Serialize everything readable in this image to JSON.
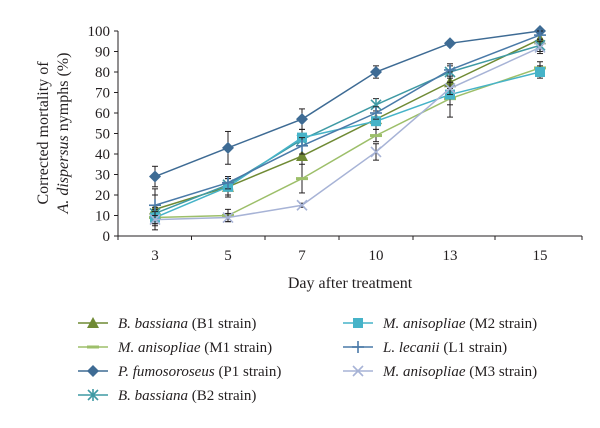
{
  "chart_data": {
    "type": "line",
    "title": "",
    "xlabel": "Day after treatment",
    "ylabel": {
      "line1": "Corrected mortality of",
      "line2_species": "A. dispersus",
      "line2_rest": "nymphs (%)"
    },
    "x": [
      "3",
      "5",
      "7",
      "10",
      "13",
      "15"
    ],
    "ylim": [
      0,
      100
    ],
    "yticks": [
      "0",
      "10",
      "20",
      "30",
      "40",
      "50",
      "60",
      "70",
      "80",
      "90",
      "100"
    ],
    "grid": false,
    "legend_position": "bottom",
    "series": [
      {
        "name_species": "B. bassiana",
        "name_strain": "(B1 strain)",
        "marker": "triangle",
        "color": "#6f8a34",
        "values": [
          13,
          24,
          39,
          57,
          75,
          96
        ],
        "errors": [
          10,
          4,
          11,
          3,
          3,
          3
        ]
      },
      {
        "name_species": "M. anisopliae",
        "name_strain": "(M1 strain)",
        "marker": "dash",
        "color": "#9dbf6a",
        "values": [
          9,
          10,
          28,
          49,
          67,
          82
        ],
        "errors": [
          4,
          3,
          7,
          3,
          3,
          3
        ]
      },
      {
        "name_species": "P. fumosoroseus",
        "name_strain": "(P1 strain)",
        "marker": "diamond",
        "color": "#3e6b94",
        "values": [
          29,
          43,
          57,
          80,
          94,
          100
        ],
        "errors": [
          5,
          8,
          5,
          3,
          1,
          0
        ]
      },
      {
        "name_species": "B. bassiana",
        "name_strain": "(B2 strain)",
        "marker": "asterisk",
        "color": "#3f9aa4",
        "values": [
          11,
          25,
          47,
          64,
          80,
          93
        ],
        "errors": [
          3,
          3,
          3,
          3,
          3,
          3
        ]
      },
      {
        "name_species": "M. anisopliae",
        "name_strain": "(M2 strain)",
        "marker": "square",
        "color": "#46b3c8",
        "values": [
          9,
          24,
          48,
          56,
          69,
          80
        ],
        "errors": [
          3,
          5,
          4,
          4,
          11,
          3
        ]
      },
      {
        "name_species": "L. lecanii",
        "name_strain": "(L1 strain)",
        "marker": "plus",
        "color": "#4a7aa8",
        "values": [
          15,
          26,
          44,
          60,
          81,
          98
        ],
        "errors": [
          5,
          3,
          4,
          3,
          3,
          2
        ]
      },
      {
        "name_species": "M. anisopliae",
        "name_strain": "(M3 strain)",
        "marker": "cross",
        "color": "#a7b3d6",
        "values": [
          8,
          9,
          15,
          41,
          72,
          92
        ],
        "errors": [
          2,
          2,
          1,
          4,
          3,
          3
        ]
      }
    ]
  }
}
